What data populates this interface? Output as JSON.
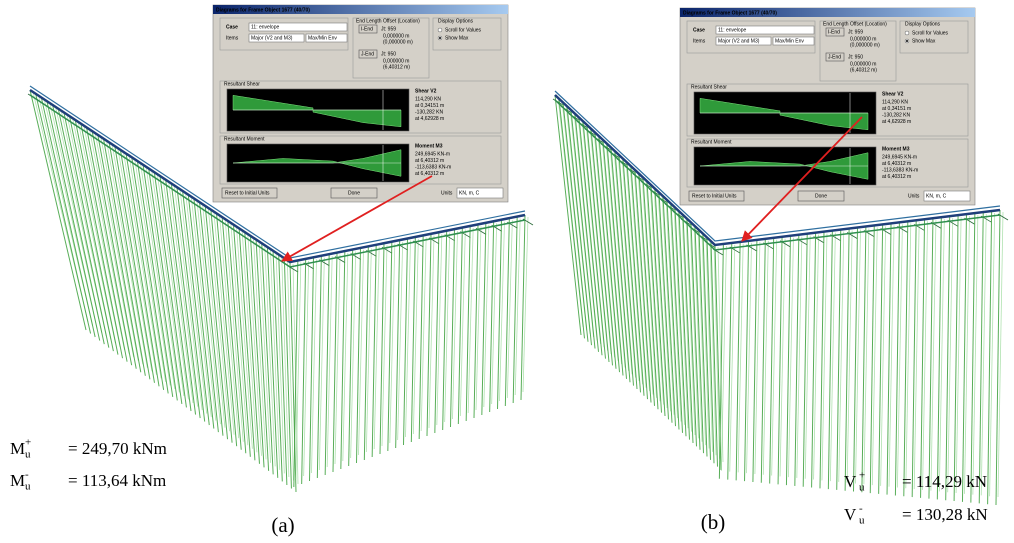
{
  "panels": [
    {
      "caption": "(a)",
      "dialog": {
        "title": "Diagrams for Frame Object 1677 (40/70)",
        "case_label": "Case",
        "case_value": "11: envelope",
        "items_label": "Items",
        "items_value": "Major (V2 and M3)",
        "items_type": "Max/Min Env",
        "offset_title": "End Length Offset (Location)",
        "i_end": "I-End",
        "i_joint": "Jt: 959",
        "i_offset": "0,000000 m",
        "i_location": "(0,000000 m)",
        "j_end": "J-End",
        "j_joint": "Jt: 950",
        "j_offset": "0,000000 m",
        "j_location": "(6,40312 m)",
        "display_title": "Display Options",
        "option_scroll": "Scroll for Values",
        "option_show": "Show Max",
        "shear_title": "Resultant Shear",
        "shear_name": "Shear V2",
        "shear_lines": [
          "114,290 KN",
          "at 0,34151 m",
          "-130,282 KN",
          "at 4,62928 m"
        ],
        "moment_title": "Resultant Moment",
        "moment_name": "Moment M3",
        "moment_lines": [
          "249,6945 KN-m",
          "at 6,40312 m",
          "-113,6383 KN-m",
          "at 6,40312 m"
        ],
        "reset_button": "Reset to Initial Units",
        "done_button": "Done",
        "units_label": "Units",
        "units_value": "KN, m, C"
      },
      "results": [
        {
          "symbol": "M",
          "sub": "u",
          "sup": "+",
          "text": "= 249,70 kNm"
        },
        {
          "symbol": "M",
          "sub": "u",
          "sup": "-",
          "text": "= 113,64 kNm"
        }
      ]
    },
    {
      "caption": "(b)",
      "dialog": {
        "title": "Diagrams for Frame Object 1677 (40/70)",
        "case_label": "Case",
        "case_value": "11: envelope",
        "items_label": "Items",
        "items_value": "Major (V2 and M3)",
        "items_type": "Max/Min Env",
        "offset_title": "End Length Offset (Location)",
        "i_end": "I-End",
        "i_joint": "Jt: 959",
        "i_offset": "0,000000 m",
        "i_location": "(0,000000 m)",
        "j_end": "J-End",
        "j_joint": "Jt: 950",
        "j_offset": "0,000000 m",
        "j_location": "(6,40312 m)",
        "display_title": "Display Options",
        "option_scroll": "Scroll for Values",
        "option_show": "Show Max",
        "shear_title": "Resultant Shear",
        "shear_name": "Shear V2",
        "shear_lines": [
          "114,290 KN",
          "at 0,34151 m",
          "-130,282 KN",
          "at 4,62928 m"
        ],
        "moment_title": "Resultant Moment",
        "moment_name": "Moment M3",
        "moment_lines": [
          "249,6945 KN-m",
          "at 6,40312 m",
          "-113,6383 KN-m",
          "at 6,40312 m"
        ],
        "reset_button": "Reset to Initial Units",
        "done_button": "Done",
        "units_label": "Units",
        "units_value": "KN, m, C"
      },
      "results": [
        {
          "symbol": "V",
          "sub": "u",
          "sup": "+",
          "text": "= 114,29 kN"
        },
        {
          "symbol": "V",
          "sub": "u",
          "sup": "-",
          "text": "= 130,28 kN"
        }
      ]
    }
  ]
}
